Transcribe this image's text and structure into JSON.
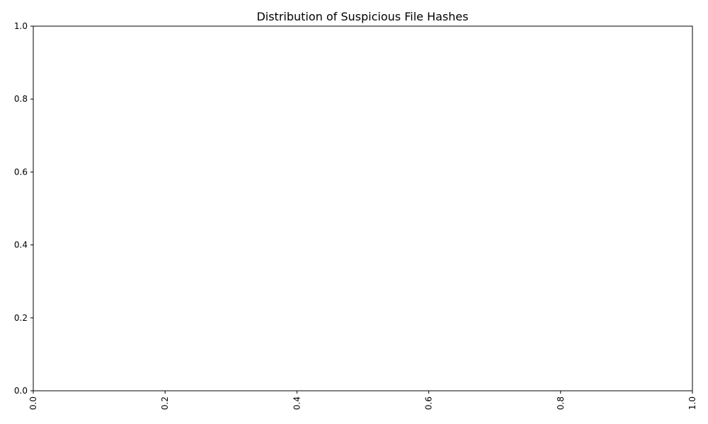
{
  "chart_data": {
    "type": "bar",
    "title": "Distribution of Suspicious File Hashes",
    "xlabel": "",
    "ylabel": "",
    "categories": [],
    "values": [],
    "xlim": [
      0.0,
      1.0
    ],
    "ylim": [
      0.0,
      1.0
    ],
    "x_ticks": [
      "0.0",
      "0.2",
      "0.4",
      "0.6",
      "0.8",
      "1.0"
    ],
    "y_ticks": [
      "0.0",
      "0.2",
      "0.4",
      "0.6",
      "0.8",
      "1.0"
    ],
    "x_tick_rotation": "vertical",
    "grid": false,
    "legend": "none"
  }
}
